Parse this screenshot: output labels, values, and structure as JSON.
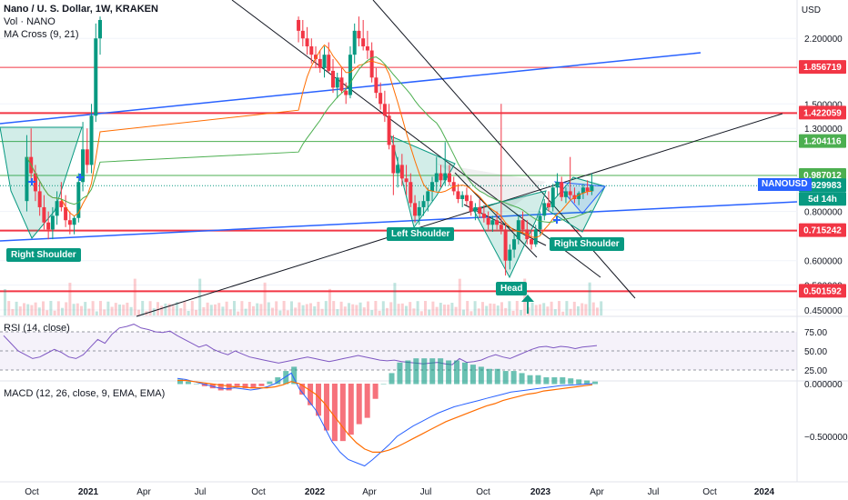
{
  "legend": {
    "symbol": "Nano / U. S. Dollar, 1W, KRAKEN",
    "vol": "Vol · NANO",
    "ma": "MA Cross (9, 21)"
  },
  "rsi_label": "RSI (14, close)",
  "macd_label": "MACD (12, 26, close, 9, EMA, EMA)",
  "currency": "USD",
  "price_ticks": [
    "2.200000",
    "1.500000",
    "1.300000",
    "0.800000",
    "0.600000",
    "0.520000",
    "0.450000"
  ],
  "rsi_ticks": [
    "75.00",
    "50.00",
    "25.00"
  ],
  "macd_ticks": [
    "0.000000",
    "−0.500000"
  ],
  "time_ticks": [
    "Oct",
    "2021",
    "Apr",
    "Jul",
    "Oct",
    "2022",
    "Apr",
    "Jul",
    "Oct",
    "2023",
    "Apr",
    "Jul",
    "Oct",
    "2024"
  ],
  "price_tags": [
    {
      "label": "1.856719",
      "color": "#f23645"
    },
    {
      "label": "1.422059",
      "color": "#f23645"
    },
    {
      "label": "1.204116",
      "color": "#4caf50"
    },
    {
      "label": "0.987012",
      "color": "#4caf50"
    },
    {
      "label": "0.929983",
      "color": "#089981"
    },
    {
      "label": "5d 14h",
      "color": "#089981"
    },
    {
      "label": "0.715242",
      "color": "#f23645"
    },
    {
      "label": "0.501592",
      "color": "#f23645"
    }
  ],
  "symbol_tag": "NANOUSD",
  "pattern_labels": [
    "Right Shoulder",
    "Left Shoulder",
    "Head",
    "Right Shoulder"
  ],
  "colors": {
    "up": "#089981",
    "down": "#f23645",
    "trend": "#2962ff",
    "fast_ma": "#ff6d00",
    "slow_ma": "#4caf50",
    "rsi": "#7e57c2",
    "macd": "#2962ff",
    "signal": "#ff6d00"
  },
  "chart_data": [
    {
      "type": "candlestick",
      "title": "Nano / U. S. Dollar, 1W, KRAKEN",
      "ylabel": "USD",
      "yscale": "log",
      "ylim": [
        0.42,
        2.5
      ],
      "x_ticks": [
        "Oct",
        "2021",
        "Apr",
        "Jul",
        "Oct",
        "2022",
        "Apr",
        "Jul",
        "Oct",
        "2023",
        "Apr",
        "Jul",
        "Oct",
        "2024"
      ],
      "horizontal_levels": [
        1.856719,
        1.422059,
        1.204116,
        0.987012,
        0.715242,
        0.501592
      ],
      "last_price": 0.929983,
      "candles": [
        {
          "x": "2020-09-21",
          "o": 0.85,
          "h": 1.25,
          "l": 0.8,
          "c": 1.1
        },
        {
          "x": "2020-09-28",
          "o": 1.1,
          "h": 1.3,
          "l": 0.95,
          "c": 1.0
        },
        {
          "x": "2020-10-05",
          "o": 1.0,
          "h": 1.05,
          "l": 0.85,
          "c": 0.9
        },
        {
          "x": "2020-10-12",
          "o": 0.9,
          "h": 0.95,
          "l": 0.78,
          "c": 0.82
        },
        {
          "x": "2020-10-19",
          "o": 0.82,
          "h": 0.88,
          "l": 0.72,
          "c": 0.75
        },
        {
          "x": "2020-10-26",
          "o": 0.75,
          "h": 0.8,
          "l": 0.68,
          "c": 0.72
        },
        {
          "x": "2020-11-02",
          "o": 0.72,
          "h": 0.82,
          "l": 0.68,
          "c": 0.78
        },
        {
          "x": "2020-11-09",
          "o": 0.78,
          "h": 0.9,
          "l": 0.74,
          "c": 0.85
        },
        {
          "x": "2020-11-16",
          "o": 0.85,
          "h": 0.95,
          "l": 0.8,
          "c": 0.82
        },
        {
          "x": "2020-11-23",
          "o": 0.82,
          "h": 0.88,
          "l": 0.73,
          "c": 0.76
        },
        {
          "x": "2020-11-30",
          "o": 0.76,
          "h": 0.8,
          "l": 0.7,
          "c": 0.74
        },
        {
          "x": "2020-12-07",
          "o": 0.74,
          "h": 0.78,
          "l": 0.7,
          "c": 0.77
        },
        {
          "x": "2020-12-14",
          "o": 0.77,
          "h": 1.0,
          "l": 0.75,
          "c": 0.95
        },
        {
          "x": "2020-12-21",
          "o": 0.95,
          "h": 1.35,
          "l": 0.9,
          "c": 1.15
        },
        {
          "x": "2020-12-28",
          "o": 1.15,
          "h": 1.3,
          "l": 1.0,
          "c": 1.05
        },
        {
          "x": "2021-01-04",
          "o": 1.05,
          "h": 1.5,
          "l": 1.0,
          "c": 1.4
        },
        {
          "x": "2021-01-11",
          "o": 1.4,
          "h": 2.4,
          "l": 1.35,
          "c": 2.2
        },
        {
          "x": "2021-01-18",
          "o": 2.2,
          "h": 2.5,
          "l": 2.0,
          "c": 2.45
        },
        {
          "x": "2021-12-06",
          "o": 2.45,
          "h": 2.5,
          "l": 2.15,
          "c": 2.3
        },
        {
          "x": "2021-12-13",
          "o": 2.3,
          "h": 2.45,
          "l": 2.1,
          "c": 2.2
        },
        {
          "x": "2021-12-20",
          "o": 2.2,
          "h": 2.35,
          "l": 2.0,
          "c": 2.1
        },
        {
          "x": "2021-12-27",
          "o": 2.1,
          "h": 2.2,
          "l": 1.9,
          "c": 2.0
        },
        {
          "x": "2022-01-03",
          "o": 2.0,
          "h": 2.1,
          "l": 1.85,
          "c": 1.95
        },
        {
          "x": "2022-01-10",
          "o": 1.95,
          "h": 2.05,
          "l": 1.8,
          "c": 1.85
        },
        {
          "x": "2022-01-17",
          "o": 1.85,
          "h": 2.1,
          "l": 1.75,
          "c": 2.0
        },
        {
          "x": "2022-01-24",
          "o": 2.0,
          "h": 2.15,
          "l": 1.8,
          "c": 1.82
        },
        {
          "x": "2022-01-31",
          "o": 1.82,
          "h": 1.95,
          "l": 1.6,
          "c": 1.65
        },
        {
          "x": "2022-02-07",
          "o": 1.65,
          "h": 1.8,
          "l": 1.55,
          "c": 1.75
        },
        {
          "x": "2022-02-14",
          "o": 1.75,
          "h": 1.85,
          "l": 1.6,
          "c": 1.62
        },
        {
          "x": "2022-02-21",
          "o": 1.62,
          "h": 1.7,
          "l": 1.5,
          "c": 1.58
        },
        {
          "x": "2022-02-28",
          "o": 1.58,
          "h": 2.1,
          "l": 1.55,
          "c": 2.0
        },
        {
          "x": "2022-03-07",
          "o": 2.0,
          "h": 2.4,
          "l": 1.9,
          "c": 2.3
        },
        {
          "x": "2022-03-14",
          "o": 2.3,
          "h": 2.5,
          "l": 2.1,
          "c": 2.2
        },
        {
          "x": "2022-03-21",
          "o": 2.2,
          "h": 2.45,
          "l": 2.05,
          "c": 2.1
        },
        {
          "x": "2022-03-28",
          "o": 2.1,
          "h": 2.3,
          "l": 1.95,
          "c": 2.05
        },
        {
          "x": "2022-04-04",
          "o": 2.05,
          "h": 2.15,
          "l": 1.7,
          "c": 1.75
        },
        {
          "x": "2022-04-11",
          "o": 1.75,
          "h": 1.85,
          "l": 1.55,
          "c": 1.6
        },
        {
          "x": "2022-04-18",
          "o": 1.6,
          "h": 1.7,
          "l": 1.45,
          "c": 1.5
        },
        {
          "x": "2022-04-25",
          "o": 1.5,
          "h": 1.62,
          "l": 1.35,
          "c": 1.4
        },
        {
          "x": "2022-05-02",
          "o": 1.4,
          "h": 1.5,
          "l": 1.15,
          "c": 1.18
        },
        {
          "x": "2022-05-09",
          "o": 1.18,
          "h": 1.25,
          "l": 0.88,
          "c": 1.0
        },
        {
          "x": "2022-05-16",
          "o": 1.0,
          "h": 1.1,
          "l": 0.92,
          "c": 1.05
        },
        {
          "x": "2022-05-23",
          "o": 1.05,
          "h": 1.12,
          "l": 0.93,
          "c": 0.97
        },
        {
          "x": "2022-05-30",
          "o": 0.97,
          "h": 1.05,
          "l": 0.88,
          "c": 0.95
        },
        {
          "x": "2022-06-06",
          "o": 0.95,
          "h": 1.0,
          "l": 0.82,
          "c": 0.84
        },
        {
          "x": "2022-06-13",
          "o": 0.84,
          "h": 0.88,
          "l": 0.75,
          "c": 0.78
        },
        {
          "x": "2022-06-20",
          "o": 0.78,
          "h": 0.85,
          "l": 0.74,
          "c": 0.82
        },
        {
          "x": "2022-06-27",
          "o": 0.82,
          "h": 0.88,
          "l": 0.78,
          "c": 0.85
        },
        {
          "x": "2022-07-04",
          "o": 0.85,
          "h": 0.92,
          "l": 0.8,
          "c": 0.9
        },
        {
          "x": "2022-07-11",
          "o": 0.9,
          "h": 0.98,
          "l": 0.85,
          "c": 0.95
        },
        {
          "x": "2022-07-18",
          "o": 0.95,
          "h": 1.1,
          "l": 0.9,
          "c": 1.0
        },
        {
          "x": "2022-07-25",
          "o": 1.0,
          "h": 1.05,
          "l": 0.92,
          "c": 0.96
        },
        {
          "x": "2022-08-01",
          "o": 0.96,
          "h": 1.2,
          "l": 0.93,
          "c": 1.0
        },
        {
          "x": "2022-08-08",
          "o": 1.0,
          "h": 1.05,
          "l": 0.93,
          "c": 0.95
        },
        {
          "x": "2022-08-15",
          "o": 0.95,
          "h": 0.98,
          "l": 0.88,
          "c": 0.9
        },
        {
          "x": "2022-08-22",
          "o": 0.9,
          "h": 0.94,
          "l": 0.84,
          "c": 0.86
        },
        {
          "x": "2022-08-29",
          "o": 0.86,
          "h": 0.9,
          "l": 0.82,
          "c": 0.88
        },
        {
          "x": "2022-09-05",
          "o": 0.88,
          "h": 0.92,
          "l": 0.83,
          "c": 0.85
        },
        {
          "x": "2022-09-12",
          "o": 0.85,
          "h": 0.88,
          "l": 0.78,
          "c": 0.8
        },
        {
          "x": "2022-09-19",
          "o": 0.8,
          "h": 0.84,
          "l": 0.76,
          "c": 0.82
        },
        {
          "x": "2022-09-26",
          "o": 0.82,
          "h": 0.86,
          "l": 0.77,
          "c": 0.79
        },
        {
          "x": "2022-10-03",
          "o": 0.79,
          "h": 0.83,
          "l": 0.75,
          "c": 0.77
        },
        {
          "x": "2022-10-10",
          "o": 0.77,
          "h": 0.8,
          "l": 0.72,
          "c": 0.74
        },
        {
          "x": "2022-10-17",
          "o": 0.74,
          "h": 0.78,
          "l": 0.71,
          "c": 0.76
        },
        {
          "x": "2022-10-24",
          "o": 0.76,
          "h": 0.8,
          "l": 0.72,
          "c": 0.74
        },
        {
          "x": "2022-10-31",
          "o": 0.74,
          "h": 1.5,
          "l": 0.7,
          "c": 0.72
        },
        {
          "x": "2022-11-07",
          "o": 0.72,
          "h": 0.75,
          "l": 0.55,
          "c": 0.6
        },
        {
          "x": "2022-11-14",
          "o": 0.6,
          "h": 0.66,
          "l": 0.57,
          "c": 0.64
        },
        {
          "x": "2022-11-21",
          "o": 0.64,
          "h": 0.7,
          "l": 0.61,
          "c": 0.68
        },
        {
          "x": "2022-11-28",
          "o": 0.68,
          "h": 0.78,
          "l": 0.66,
          "c": 0.76
        },
        {
          "x": "2022-12-05",
          "o": 0.76,
          "h": 0.8,
          "l": 0.7,
          "c": 0.72
        },
        {
          "x": "2022-12-12",
          "o": 0.72,
          "h": 0.76,
          "l": 0.66,
          "c": 0.68
        },
        {
          "x": "2022-12-19",
          "o": 0.68,
          "h": 0.72,
          "l": 0.64,
          "c": 0.66
        },
        {
          "x": "2022-12-26",
          "o": 0.66,
          "h": 0.74,
          "l": 0.65,
          "c": 0.72
        },
        {
          "x": "2023-01-02",
          "o": 0.72,
          "h": 0.8,
          "l": 0.7,
          "c": 0.78
        },
        {
          "x": "2023-01-09",
          "o": 0.78,
          "h": 0.86,
          "l": 0.76,
          "c": 0.84
        },
        {
          "x": "2023-01-16",
          "o": 0.84,
          "h": 0.9,
          "l": 0.8,
          "c": 0.82
        },
        {
          "x": "2023-01-23",
          "o": 0.82,
          "h": 0.94,
          "l": 0.8,
          "c": 0.92
        },
        {
          "x": "2023-01-30",
          "o": 0.92,
          "h": 1.0,
          "l": 0.88,
          "c": 0.95
        },
        {
          "x": "2023-02-06",
          "o": 0.95,
          "h": 0.98,
          "l": 0.85,
          "c": 0.87
        },
        {
          "x": "2023-02-13",
          "o": 0.87,
          "h": 0.92,
          "l": 0.84,
          "c": 0.9
        },
        {
          "x": "2023-02-20",
          "o": 0.9,
          "h": 1.1,
          "l": 0.86,
          "c": 0.88
        },
        {
          "x": "2023-02-27",
          "o": 0.88,
          "h": 0.92,
          "l": 0.84,
          "c": 0.86
        },
        {
          "x": "2023-03-06",
          "o": 0.86,
          "h": 0.9,
          "l": 0.83,
          "c": 0.89
        },
        {
          "x": "2023-03-13",
          "o": 0.89,
          "h": 0.94,
          "l": 0.86,
          "c": 0.92
        },
        {
          "x": "2023-03-20",
          "o": 0.92,
          "h": 0.96,
          "l": 0.88,
          "c": 0.9
        },
        {
          "x": "2023-03-27",
          "o": 0.9,
          "h": 1.0,
          "l": 0.88,
          "c": 0.93
        }
      ]
    },
    {
      "type": "line",
      "title": "RSI (14, close)",
      "ylim": [
        20,
        80
      ],
      "y_ticks": [
        75,
        50,
        25
      ],
      "series": [
        {
          "values": [
            70,
            60,
            50,
            45,
            40,
            42,
            47,
            52,
            48,
            42,
            40,
            45,
            55,
            65,
            60,
            72,
            80,
            82,
            85,
            80,
            78,
            75,
            74,
            76,
            70,
            65,
            60,
            55,
            58,
            52,
            48,
            45,
            50,
            46,
            42,
            40,
            38,
            36,
            34,
            36,
            38,
            40,
            42,
            40,
            38,
            36,
            38,
            40,
            42,
            44,
            42,
            40,
            38,
            37,
            38,
            36,
            35,
            34,
            33,
            34,
            35,
            33,
            32,
            40,
            35,
            36,
            38,
            42,
            45,
            42,
            40,
            44,
            48,
            52,
            55,
            56,
            54,
            56,
            55,
            53,
            55,
            56,
            57
          ]
        }
      ]
    },
    {
      "type": "line",
      "title": "MACD (12, 26, close, 9, EMA, EMA)",
      "y_ticks": [
        0.0,
        -0.5
      ],
      "series": [
        {
          "name": "MACD",
          "values": [
            0.05,
            0.04,
            0.02,
            0.0,
            -0.02,
            -0.04,
            -0.05,
            -0.04,
            -0.05,
            -0.06,
            -0.05,
            -0.03,
            0.0,
            0.05,
            0.1,
            -0.05,
            -0.15,
            -0.25,
            -0.4,
            -0.55,
            -0.65,
            -0.72,
            -0.75,
            -0.78,
            -0.72,
            -0.65,
            -0.58,
            -0.5,
            -0.45,
            -0.4,
            -0.36,
            -0.32,
            -0.28,
            -0.25,
            -0.22,
            -0.2,
            -0.18,
            -0.16,
            -0.14,
            -0.12,
            -0.1,
            -0.08,
            -0.07,
            -0.06,
            -0.05,
            -0.04,
            -0.03,
            -0.02,
            -0.015,
            -0.01,
            -0.005,
            0.0
          ]
        },
        {
          "name": "Signal",
          "values": [
            0.03,
            0.03,
            0.02,
            0.01,
            0.0,
            -0.01,
            -0.02,
            -0.03,
            -0.03,
            -0.04,
            -0.04,
            -0.04,
            -0.03,
            -0.01,
            0.02,
            0.0,
            -0.05,
            -0.1,
            -0.18,
            -0.28,
            -0.38,
            -0.48,
            -0.56,
            -0.62,
            -0.65,
            -0.65,
            -0.63,
            -0.6,
            -0.56,
            -0.52,
            -0.48,
            -0.44,
            -0.4,
            -0.36,
            -0.33,
            -0.3,
            -0.27,
            -0.24,
            -0.21,
            -0.19,
            -0.16,
            -0.14,
            -0.12,
            -0.1,
            -0.09,
            -0.07,
            -0.06,
            -0.05,
            -0.04,
            -0.03,
            -0.02,
            -0.01
          ]
        }
      ]
    }
  ]
}
